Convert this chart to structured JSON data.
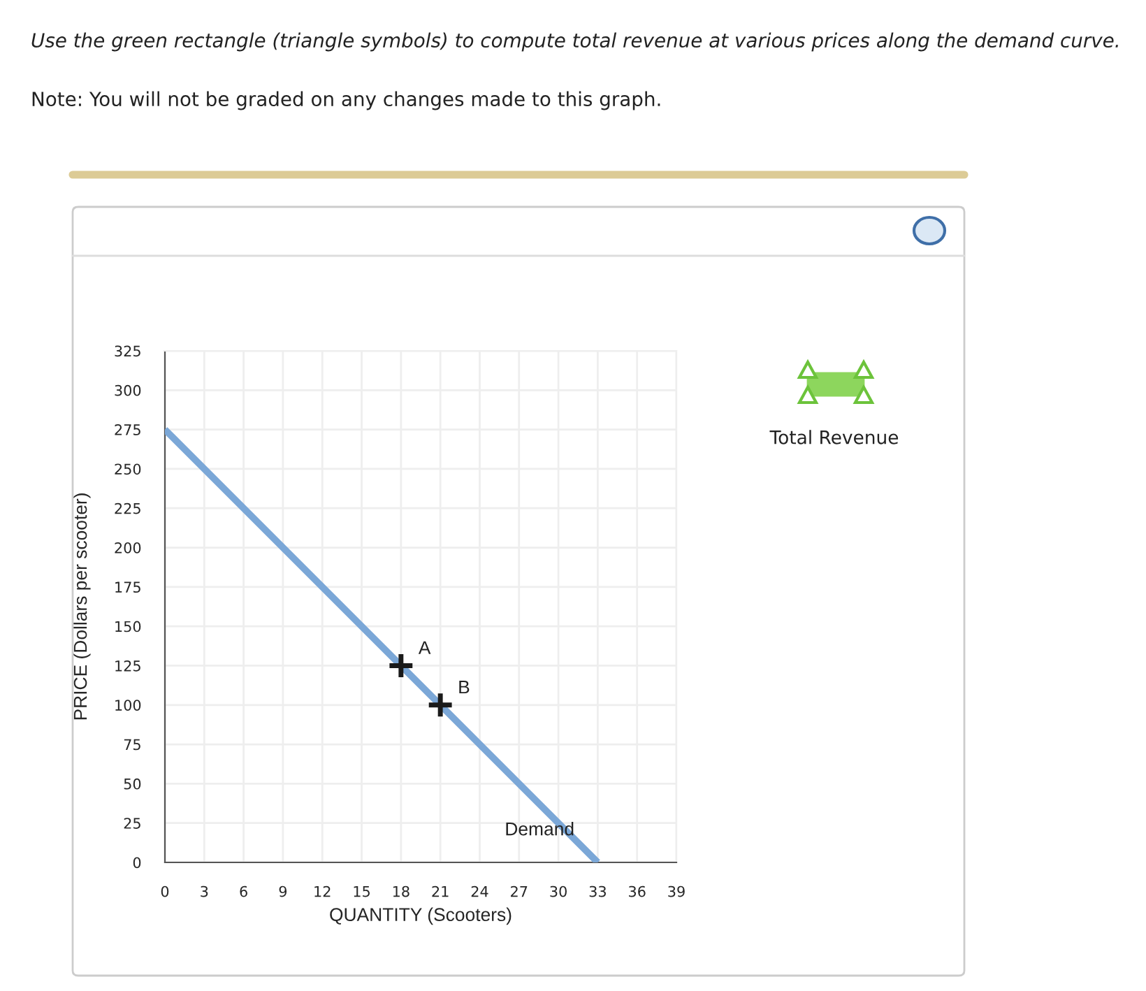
{
  "chart_data": {
    "type": "line",
    "xlabel": "QUANTITY (Scooters)",
    "ylabel": "PRICE (Dollars per scooter)",
    "annotations": [
      "Use the green rectangle (triangle symbols) to compute total revenue at various prices along the demand curve.",
      "Note: You will not be graded on any changes made to this graph.",
      "Total Revenue"
    ],
    "series": [
      {
        "name": "Demand",
        "color": "#7ba7d7",
        "x": [
          0,
          33
        ],
        "values": [
          275,
          0
        ],
        "marker": "none"
      },
      {
        "type": "scatter",
        "name": "A",
        "color": "#1a1a1a",
        "x": [
          18
        ],
        "values": [
          125
        ],
        "marker": "cross"
      },
      {
        "type": "scatter",
        "name": "B",
        "color": "#1a1a1a",
        "x": [
          21
        ],
        "values": [
          100
        ],
        "marker": "cross"
      }
    ],
    "xlim": [
      0,
      39
    ],
    "xticks": [
      0,
      3,
      6,
      9,
      12,
      15,
      18,
      21,
      24,
      27,
      30,
      33,
      36,
      39
    ],
    "ylim": [
      0,
      325
    ],
    "yticks": [
      0,
      25,
      50,
      75,
      100,
      125,
      150,
      175,
      200,
      225,
      250,
      275,
      300,
      325
    ],
    "grid": true,
    "legend": false
  }
}
